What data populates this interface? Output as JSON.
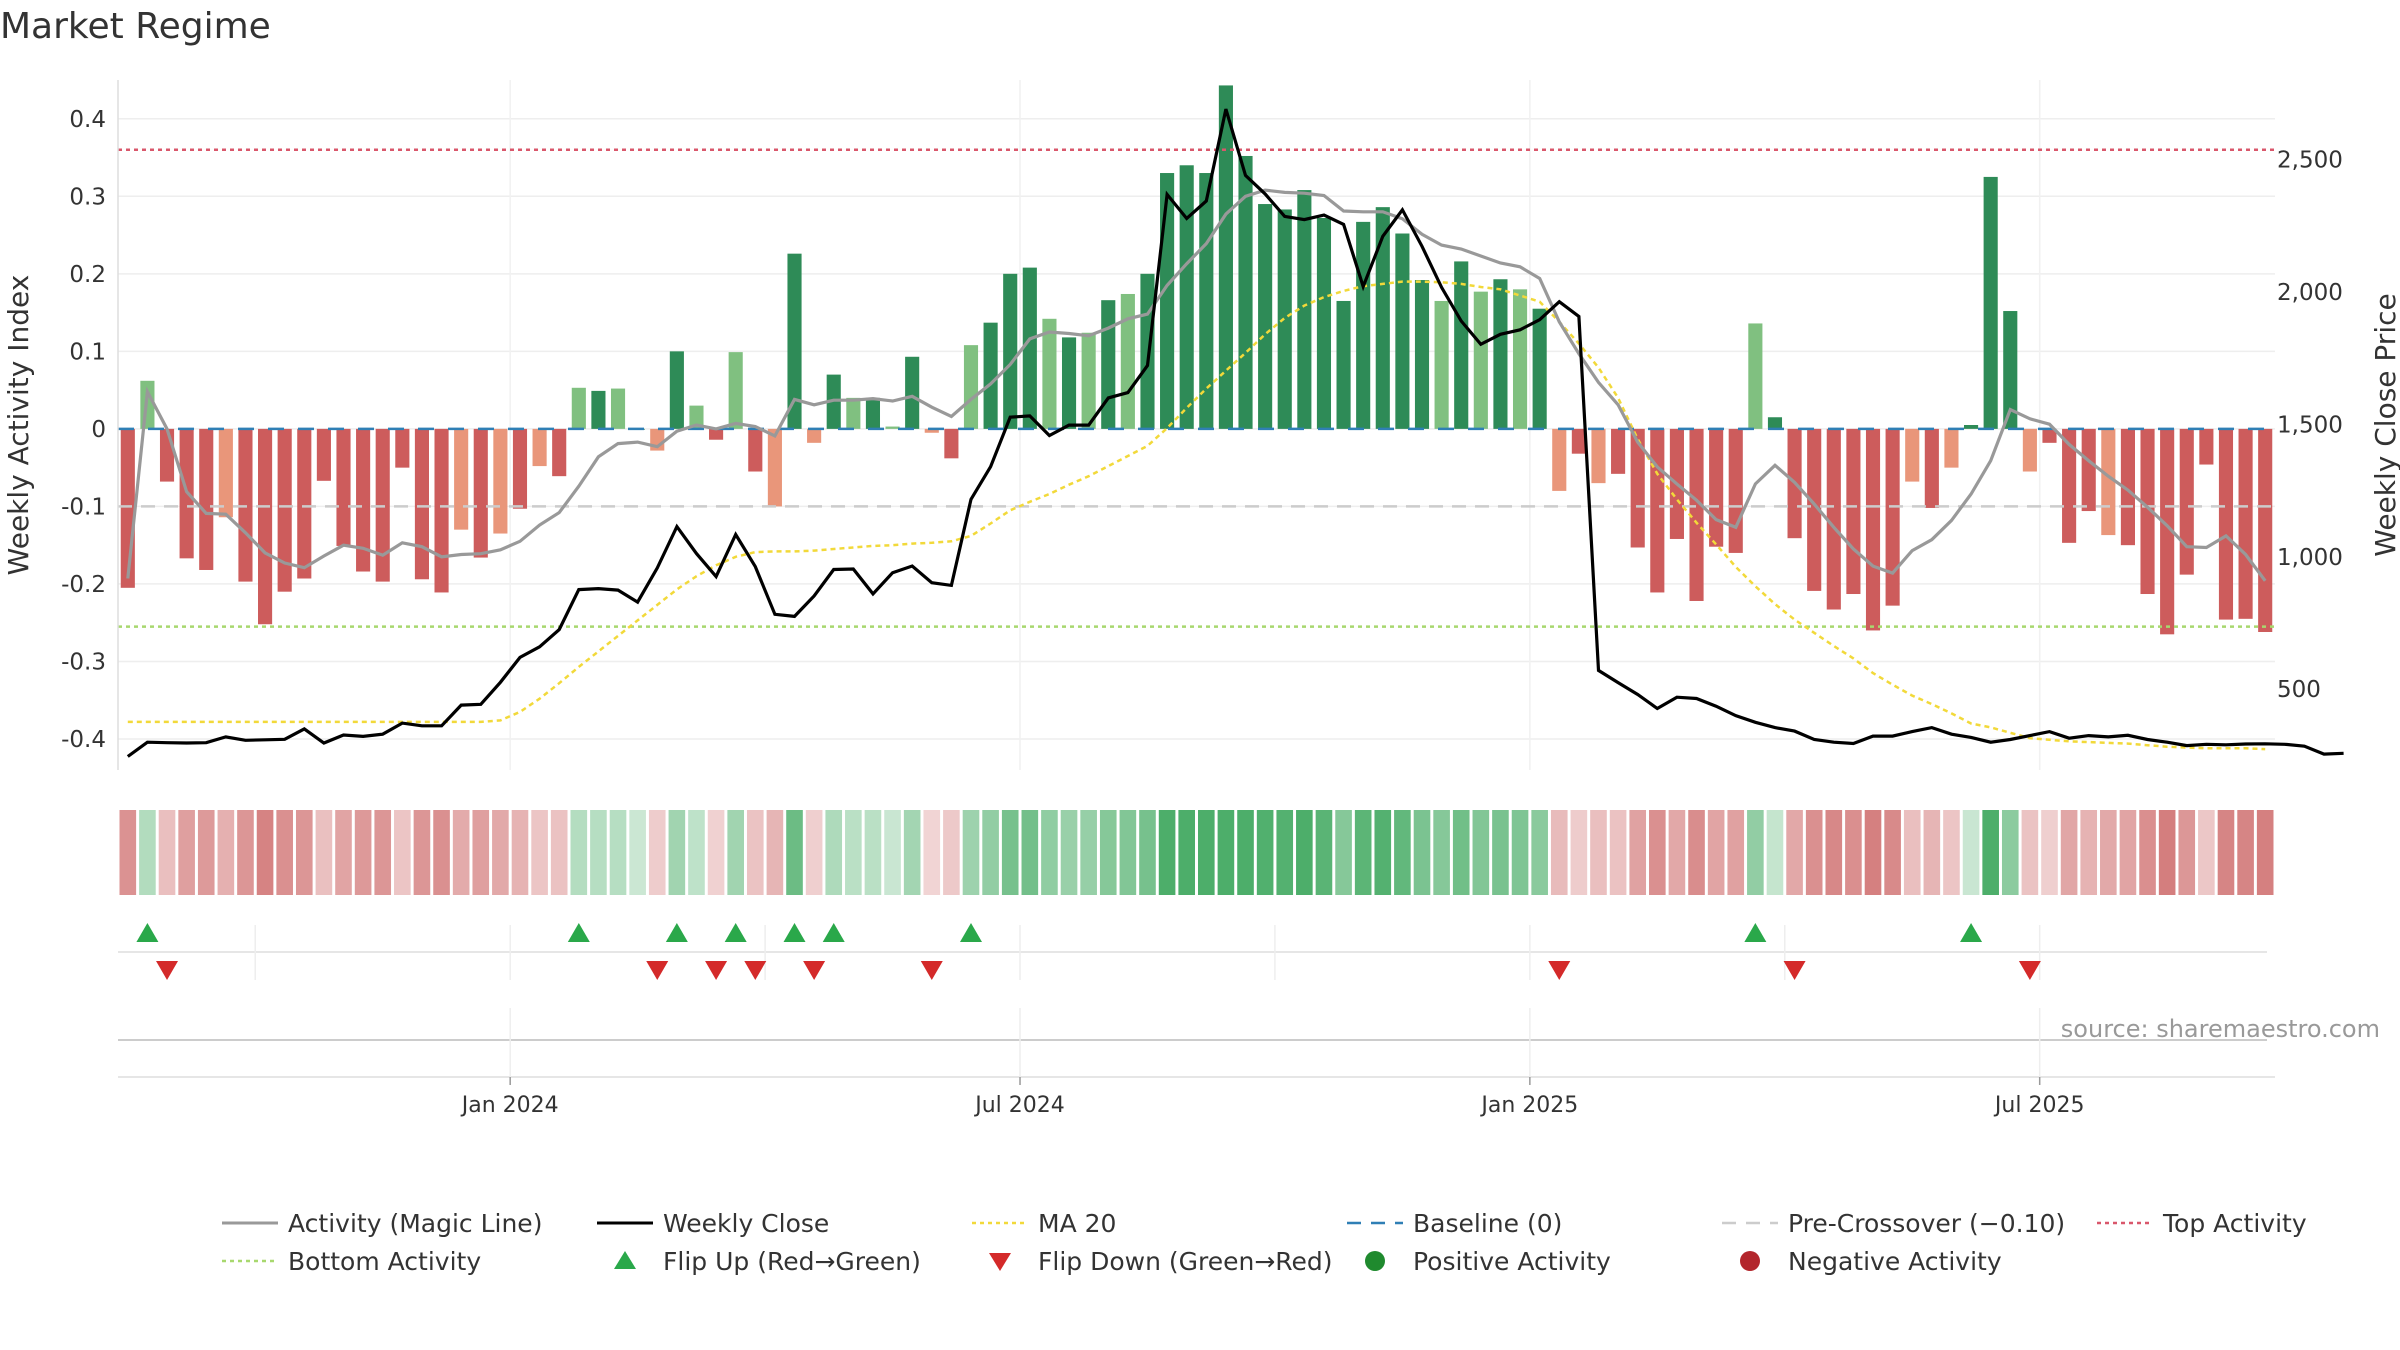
{
  "title": "Market Regime",
  "source": "source: sharemaestro.com",
  "chart_data": {
    "type": "bar",
    "left_axis": {
      "label": "Weekly Activity Index",
      "ticks": [
        0.4,
        0.3,
        0.2,
        0.1,
        0,
        -0.1,
        -0.2,
        -0.3,
        -0.4
      ],
      "tick_labels": [
        "0.4",
        "0.3",
        "0.2",
        "0.1",
        "0",
        "-0.1",
        "-0.2",
        "-0.3",
        "-0.4"
      ],
      "ylim": [
        -0.44,
        0.45
      ]
    },
    "right_axis": {
      "label": "Weekly Close Price",
      "ticks": [
        2500,
        2000,
        1500,
        1000,
        500
      ],
      "tick_labels": [
        "2,500",
        "2,000",
        "1,500",
        "1,000",
        "500"
      ],
      "ylim": [
        195,
        2800
      ]
    },
    "x_axis": {
      "ticks": [
        {
          "week": 20,
          "label": "Jan 2024"
        },
        {
          "week": 46,
          "label": "Jul 2024"
        },
        {
          "week": 72,
          "label": "Jan 2025"
        },
        {
          "week": 98,
          "label": "Jul 2025"
        }
      ],
      "first_week": "2023-08-21"
    },
    "reference_lines": {
      "top_activity": 0.36,
      "bottom_activity": -0.255,
      "pre_crossover": -0.1,
      "baseline": 0
    },
    "activity": [
      -0.205,
      0.062,
      -0.068,
      -0.167,
      -0.182,
      -0.114,
      -0.197,
      -0.252,
      -0.21,
      -0.193,
      -0.067,
      -0.151,
      -0.184,
      -0.197,
      -0.05,
      -0.194,
      -0.211,
      -0.13,
      -0.166,
      -0.135,
      -0.103,
      -0.048,
      -0.061,
      0.053,
      0.049,
      0.052,
      0.0,
      -0.028,
      0.1,
      0.03,
      -0.014,
      0.099,
      -0.055,
      -0.1,
      0.226,
      -0.018,
      0.07,
      0.04,
      0.04,
      0.003,
      0.093,
      -0.005,
      -0.038,
      0.108,
      0.137,
      0.2,
      0.208,
      0.142,
      0.118,
      0.124,
      0.166,
      0.174,
      0.2,
      0.33,
      0.34,
      0.33,
      0.443,
      0.352,
      0.29,
      0.283,
      0.308,
      0.272,
      0.165,
      0.267,
      0.286,
      0.252,
      0.192,
      0.165,
      0.216,
      0.177,
      0.193,
      0.18,
      0.155,
      -0.08,
      -0.032,
      -0.07,
      -0.058,
      -0.153,
      -0.211,
      -0.142,
      -0.222,
      -0.152,
      -0.16,
      0.136,
      0.015,
      -0.141,
      -0.209,
      -0.233,
      -0.213,
      -0.26,
      -0.228,
      -0.068,
      -0.102,
      -0.05,
      0.005,
      0.325,
      0.152,
      -0.055,
      -0.018,
      -0.147,
      -0.106,
      -0.137,
      -0.15,
      -0.213,
      -0.265,
      -0.188,
      -0.046,
      -0.246,
      -0.245,
      -0.262
    ],
    "close": [
      246,
      300,
      298,
      297,
      298,
      320,
      307,
      309,
      311,
      350,
      297,
      327,
      322,
      330,
      372,
      362,
      362,
      440,
      443,
      526,
      620,
      660,
      725,
      876,
      880,
      874,
      829,
      958,
      1114,
      1012,
      925,
      1084,
      963,
      783,
      775,
      852,
      952,
      954,
      860,
      940,
      965,
      902,
      892,
      1217,
      1340,
      1527,
      1532,
      1458,
      1497,
      1497,
      1600,
      1620,
      1722,
      2368,
      2277,
      2343,
      2690,
      2440,
      2370,
      2285,
      2273,
      2290,
      2255,
      2020,
      2210,
      2310,
      2172,
      2017,
      1890,
      1802,
      1840,
      1857,
      1895,
      1963,
      1907,
      571,
      525,
      480,
      427,
      470,
      465,
      436,
      400,
      375,
      355,
      342,
      310,
      300,
      295,
      323,
      323,
      340,
      355,
      330,
      318,
      300,
      310,
      325,
      340,
      315,
      325,
      320,
      326,
      310,
      300,
      287,
      292,
      290,
      293,
      294,
      292,
      285,
      255,
      258
    ],
    "magic_line": [
      -0.193,
      0.048,
      0.0,
      -0.081,
      -0.109,
      -0.11,
      -0.134,
      -0.16,
      -0.173,
      -0.179,
      -0.164,
      -0.15,
      -0.154,
      -0.163,
      -0.147,
      -0.152,
      -0.165,
      -0.162,
      -0.161,
      -0.156,
      -0.145,
      -0.124,
      -0.108,
      -0.074,
      -0.036,
      -0.019,
      -0.017,
      -0.023,
      -0.003,
      0.005,
      0.0,
      0.007,
      0.003,
      -0.009,
      0.038,
      0.031,
      0.037,
      0.037,
      0.039,
      0.036,
      0.042,
      0.028,
      0.016,
      0.038,
      0.058,
      0.083,
      0.116,
      0.125,
      0.123,
      0.12,
      0.13,
      0.142,
      0.148,
      0.185,
      0.213,
      0.239,
      0.277,
      0.3,
      0.308,
      0.305,
      0.304,
      0.301,
      0.281,
      0.28,
      0.28,
      0.271,
      0.251,
      0.237,
      0.232,
      0.223,
      0.214,
      0.209,
      0.194,
      0.138,
      0.097,
      0.06,
      0.031,
      -0.017,
      -0.049,
      -0.071,
      -0.092,
      -0.117,
      -0.127,
      -0.071,
      -0.047,
      -0.069,
      -0.097,
      -0.127,
      -0.155,
      -0.177,
      -0.186,
      -0.157,
      -0.143,
      -0.118,
      -0.084,
      -0.041,
      0.025,
      0.013,
      0.006,
      -0.02,
      -0.041,
      -0.061,
      -0.079,
      -0.101,
      -0.125,
      -0.152,
      -0.153,
      -0.138,
      -0.162,
      -0.196
    ],
    "ma20": [
      -0.378,
      -0.378,
      -0.378,
      -0.378,
      -0.378,
      -0.378,
      -0.378,
      -0.378,
      -0.378,
      -0.378,
      -0.378,
      -0.378,
      -0.378,
      -0.378,
      -0.378,
      -0.378,
      -0.378,
      -0.378,
      -0.378,
      -0.376,
      -0.365,
      -0.348,
      -0.328,
      -0.307,
      -0.287,
      -0.267,
      -0.247,
      -0.227,
      -0.207,
      -0.19,
      -0.176,
      -0.165,
      -0.159,
      -0.158,
      -0.158,
      -0.157,
      -0.155,
      -0.153,
      -0.151,
      -0.15,
      -0.148,
      -0.147,
      -0.145,
      -0.138,
      -0.122,
      -0.105,
      -0.094,
      -0.084,
      -0.072,
      -0.061,
      -0.048,
      -0.035,
      -0.022,
      0.001,
      0.027,
      0.052,
      0.075,
      0.098,
      0.122,
      0.143,
      0.159,
      0.17,
      0.178,
      0.184,
      0.187,
      0.19,
      0.19,
      0.189,
      0.187,
      0.183,
      0.18,
      0.172,
      0.164,
      0.138,
      0.11,
      0.079,
      0.04,
      -0.013,
      -0.058,
      -0.091,
      -0.121,
      -0.149,
      -0.178,
      -0.203,
      -0.226,
      -0.246,
      -0.263,
      -0.28,
      -0.296,
      -0.315,
      -0.33,
      -0.344,
      -0.355,
      -0.367,
      -0.38,
      -0.385,
      -0.392,
      -0.399,
      -0.401,
      -0.403,
      -0.404,
      -0.405,
      -0.406,
      -0.408,
      -0.41,
      -0.411,
      -0.412,
      -0.412,
      -0.412,
      -0.413
    ],
    "flip_up_weeks": [
      1,
      23,
      28,
      31,
      34,
      36,
      43,
      83,
      94
    ],
    "flip_down_weeks": [
      2,
      27,
      30,
      32,
      35,
      41,
      73,
      85,
      97
    ]
  },
  "legend": [
    {
      "label": "Activity (Magic Line)",
      "symbol": "line",
      "color": "#999999"
    },
    {
      "label": "Weekly Close",
      "symbol": "line",
      "color": "#000000"
    },
    {
      "label": "MA 20",
      "symbol": "dotted",
      "color": "#f2d93a"
    },
    {
      "label": "Baseline (0)",
      "symbol": "dashed",
      "color": "#2f7fb5"
    },
    {
      "label": "Pre-Crossover (−0.10)",
      "symbol": "dashed",
      "color": "#cccccc"
    },
    {
      "label": "Top Activity",
      "symbol": "dotted",
      "color": "#d9576b"
    },
    {
      "label": "Bottom Activity",
      "symbol": "dotted",
      "color": "#a8d86e"
    },
    {
      "label": "Flip Up (Red→Green)",
      "symbol": "triangle-up",
      "color": "#2aa84a"
    },
    {
      "label": "Flip Down (Green→Red)",
      "symbol": "triangle-down",
      "color": "#d42a2a"
    },
    {
      "label": "Positive Activity",
      "symbol": "dot",
      "color": "#1f8a2e"
    },
    {
      "label": "Negative Activity",
      "symbol": "dot",
      "color": "#b3262c"
    }
  ],
  "colors": {
    "pos_strong": "#2e8b57",
    "pos_light": "#80c080",
    "neg_strong": "#cd5c5c",
    "neg_light": "#e9967a"
  }
}
